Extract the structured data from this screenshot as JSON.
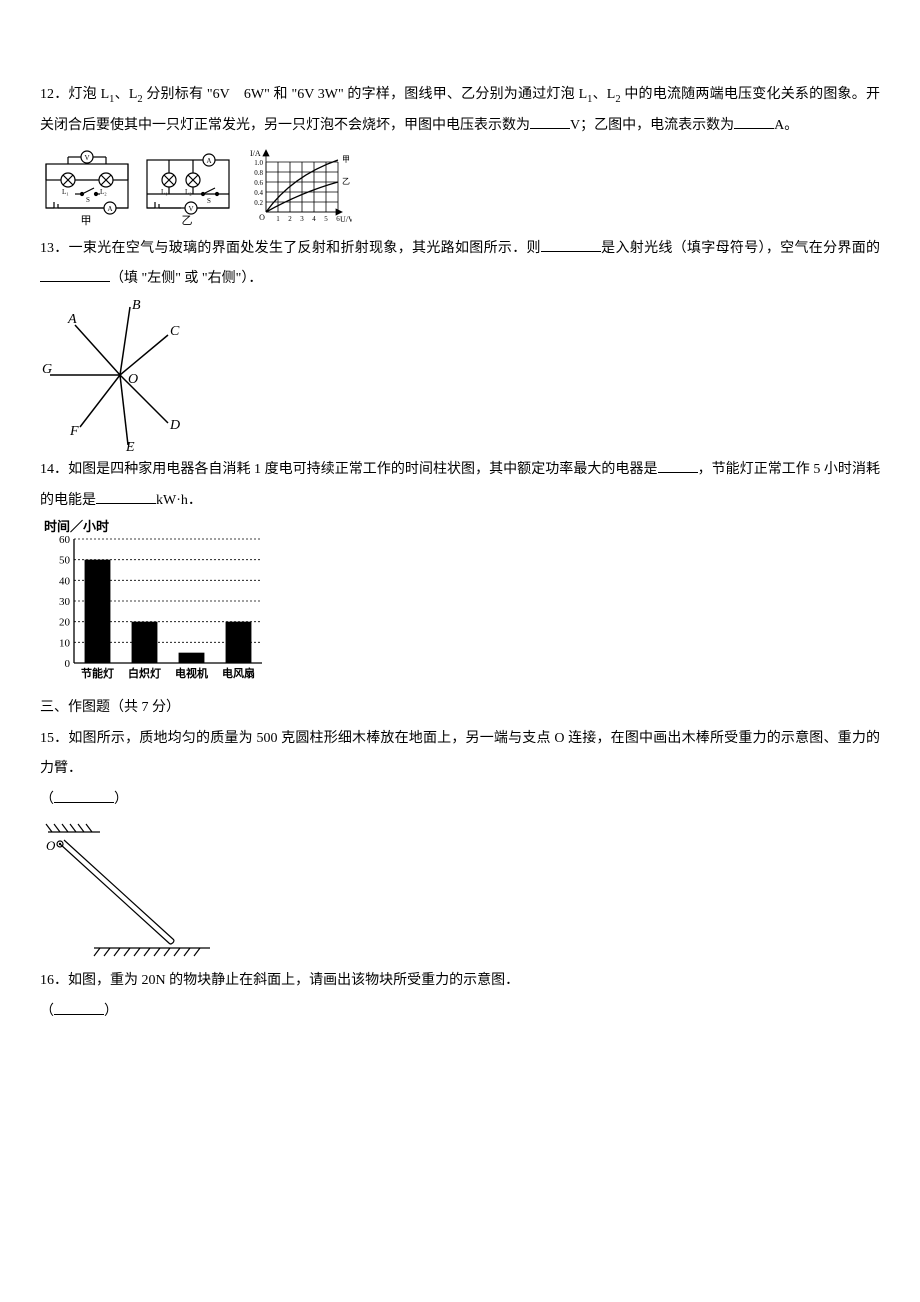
{
  "q12": {
    "text_a": "12．灯泡 L",
    "sub1": "1",
    "text_b": "、L",
    "sub2": "2",
    "text_c": " 分别标有 \"6V　6W\" 和 \"6V 3W\" 的字样，图线甲、乙分别为通过灯泡 L",
    "sub3": "1",
    "text_d": "、L",
    "sub4": "2",
    "text_e": " 中的电流随两端电压变化关系的图象。开关闭合后要使其中一只灯正常发光，另一只灯泡不会烧坏，甲图中电压表示数为",
    "unit1": "V；乙图中，电流表示数为",
    "unit2": "A。",
    "circuit1": {
      "V": "V",
      "L1": "L₁",
      "L2": "L₂",
      "S": "S",
      "A": "A",
      "label": "甲"
    },
    "circuit2": {
      "A": "A",
      "L1": "L₁",
      "L2": "L₂",
      "S": "S",
      "V": "V",
      "label": "乙"
    },
    "graph": {
      "ylabel": "I/A",
      "xlabel": "U/V",
      "xticks": [
        "0",
        "1",
        "2",
        "3",
        "4",
        "5",
        "6"
      ],
      "yticks": [
        "0.2",
        "0.4",
        "0.6",
        "0.8",
        "1.0"
      ],
      "origin": "O",
      "line1_label": "甲",
      "line2_label": "乙",
      "colors": {
        "grid": "#000000",
        "line": "#000000",
        "bg": "#ffffff"
      }
    }
  },
  "q13": {
    "text_a": "13．一束光在空气与玻璃的界面处发生了反射和折射现象，其光路如图所示．则",
    "text_b": "是入射光线（填字母符号），空气在分界面的",
    "text_c": "（填 \"左侧\" 或 \"右侧\"）．",
    "labels": {
      "A": "A",
      "B": "B",
      "C": "C",
      "D": "D",
      "E": "E",
      "F": "F",
      "G": "G",
      "O": "O"
    }
  },
  "q14": {
    "text_a": "14．如图是四种家用电器各自消耗 1 度电可持续正常工作的时间柱状图，其中额定功率最大的电器是",
    "text_b": "，节能灯正常工作 5 小时消耗的电能是",
    "text_c": "kW·h．",
    "chart": {
      "type": "bar",
      "ylabel": "时间／小时",
      "categories": [
        "节能灯",
        "白炽灯",
        "电视机",
        "电风扇"
      ],
      "values": [
        50,
        20,
        5,
        20
      ],
      "ylim": [
        0,
        60
      ],
      "yticks": [
        0,
        10,
        20,
        30,
        40,
        50,
        60
      ],
      "bar_color": "#000000",
      "grid_color": "#000000",
      "bg": "#ffffff",
      "font_size": 11
    }
  },
  "section3": "三、作图题（共 7 分）",
  "q15": {
    "text_a": "15．如图所示，质地均匀的质量为 500 克圆柱形细木棒放在地面上，另一端与支点 O 连接，在图中画出木棒所受重力的示意图、重力的力臂．",
    "paren_l": "（",
    "paren_r": "）",
    "O": "O"
  },
  "q16": {
    "text_a": "16．如图，重为 20N 的物块静止在斜面上，请画出该物块所受重力的示意图．",
    "paren_l": "（",
    "paren_r": "）"
  }
}
